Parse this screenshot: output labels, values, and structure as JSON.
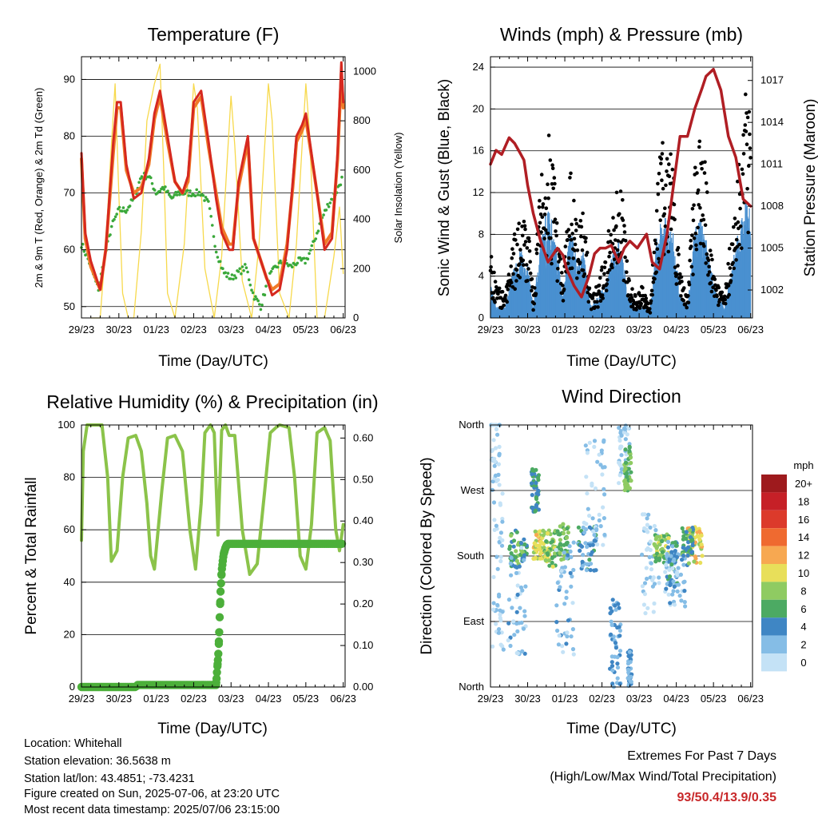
{
  "chart_data": [
    {
      "type": "line",
      "title": "Temperature (F)",
      "xlabel": "Time (Day/UTC)",
      "ylabel": "2m & 9m T (Red, Orange) & 2m Td (Green)",
      "ylabel_right": "Solar Insolation (Yellow)",
      "x_ticks": [
        "29/23",
        "30/23",
        "01/23",
        "02/23",
        "03/23",
        "04/23",
        "05/23",
        "06/23"
      ],
      "y_ticks": [
        50,
        60,
        70,
        80,
        90
      ],
      "y_right_ticks": [
        0,
        200,
        400,
        600,
        800,
        1000
      ],
      "xlim": [
        0,
        7.05
      ],
      "ylim": [
        48,
        94
      ],
      "ylim_right": [
        0,
        1060
      ],
      "grid": true,
      "series": [
        {
          "name": "2m T",
          "color": "#d6281f",
          "x": [
            0,
            0.1,
            0.25,
            0.5,
            0.65,
            0.85,
            0.95,
            1.05,
            1.2,
            1.4,
            1.6,
            1.8,
            1.95,
            2.1,
            2.3,
            2.5,
            2.7,
            2.85,
            3.0,
            3.2,
            3.4,
            3.6,
            3.75,
            3.95,
            4.05,
            4.2,
            4.45,
            4.6,
            4.8,
            4.95,
            5.1,
            5.3,
            5.5,
            5.65,
            5.75,
            5.9,
            6.0,
            6.3,
            6.5,
            6.7,
            6.85,
            6.95,
            7.0
          ],
          "y": [
            77,
            63,
            58,
            53,
            60,
            79,
            86,
            86,
            75,
            69,
            70,
            76,
            84,
            88,
            80,
            72,
            70,
            73,
            86,
            88,
            79,
            69,
            63,
            60,
            60,
            72,
            80,
            62,
            58,
            55,
            52,
            53,
            60,
            72,
            80,
            82,
            84,
            70,
            60,
            62,
            77,
            93,
            86
          ]
        },
        {
          "name": "9m T",
          "color": "#f07a28",
          "x": [
            0,
            0.1,
            0.25,
            0.5,
            0.65,
            0.85,
            0.95,
            1.05,
            1.2,
            1.4,
            1.6,
            1.8,
            1.95,
            2.1,
            2.3,
            2.5,
            2.7,
            2.85,
            3.0,
            3.2,
            3.4,
            3.6,
            3.75,
            3.95,
            4.05,
            4.2,
            4.45,
            4.6,
            4.8,
            4.95,
            5.1,
            5.3,
            5.5,
            5.65,
            5.75,
            5.9,
            6.0,
            6.3,
            6.5,
            6.7,
            6.85,
            6.95,
            7.0
          ],
          "y": [
            76,
            62,
            57,
            53,
            60,
            77,
            85,
            85,
            74,
            70,
            71,
            75,
            83,
            87,
            79,
            72,
            70,
            72,
            85,
            87,
            78,
            70,
            64,
            61,
            61,
            71,
            79,
            62,
            58,
            55,
            53,
            54,
            61,
            71,
            79,
            81,
            83,
            70,
            61,
            63,
            76,
            91,
            85
          ]
        },
        {
          "name": "2m Td",
          "color": "#3aa83a",
          "x": [
            0,
            0.2,
            0.45,
            0.6,
            0.8,
            1.0,
            1.2,
            1.4,
            1.6,
            1.8,
            2.0,
            2.2,
            2.4,
            2.6,
            2.8,
            3.0,
            3.2,
            3.4,
            3.6,
            3.8,
            4.0,
            4.2,
            4.4,
            4.6,
            4.8,
            5.0,
            5.2,
            5.4,
            5.6,
            5.8,
            6.0,
            6.2,
            6.4,
            6.6,
            6.8,
            7.0
          ],
          "y": [
            61,
            58,
            53,
            58,
            64,
            67,
            67,
            69,
            73,
            73,
            70,
            71,
            69,
            70,
            70,
            70,
            70,
            68,
            60,
            56,
            55,
            56,
            57,
            52,
            50,
            55,
            57,
            58,
            57,
            58,
            58,
            61,
            65,
            68,
            70,
            73
          ]
        },
        {
          "name": "Solar Insolation",
          "color": "#f7d94c",
          "axis": "right",
          "x": [
            0.25,
            0.5,
            0.65,
            0.8,
            0.9,
            1.0,
            1.1,
            1.25,
            1.4,
            1.6,
            1.75,
            1.95,
            2.1,
            2.2,
            2.3,
            2.5,
            2.75,
            2.9,
            3.0,
            3.1,
            3.3,
            3.55,
            3.75,
            3.9,
            4.0,
            4.1,
            4.3,
            4.55,
            4.75,
            4.9,
            5.0,
            5.1,
            5.3,
            5.55,
            5.75,
            5.9,
            6.0,
            6.1,
            6.3,
            6.5,
            6.75,
            6.9,
            7.0
          ],
          "y": [
            0,
            0,
            300,
            700,
            950,
            500,
            100,
            0,
            0,
            350,
            800,
            950,
            1030,
            600,
            100,
            0,
            300,
            700,
            950,
            850,
            200,
            0,
            250,
            650,
            900,
            700,
            150,
            0,
            300,
            700,
            950,
            800,
            100,
            0,
            300,
            700,
            950,
            750,
            0,
            0,
            250,
            450,
            180
          ]
        }
      ]
    },
    {
      "type": "scatter",
      "title": "Winds (mph) & Pressure (mb)",
      "xlabel": "Time (Day/UTC)",
      "ylabel": "Sonic Wind & Gust (Blue, Black)",
      "ylabel_right": "Station Pressure (Maroon)",
      "x_ticks": [
        "29/23",
        "30/23",
        "01/23",
        "02/23",
        "03/23",
        "04/23",
        "05/23",
        "06/23"
      ],
      "y_ticks": [
        0,
        4,
        8,
        12,
        16,
        20,
        24
      ],
      "y_right_ticks": [
        1002,
        1005,
        1008,
        1011,
        1014,
        1017
      ],
      "xlim": [
        0,
        7.05
      ],
      "ylim": [
        0,
        25
      ],
      "ylim_right": [
        1000.0,
        1018.7
      ],
      "grid": true,
      "wind_envelope": {
        "x": [
          0,
          0.15,
          0.4,
          0.6,
          0.8,
          1.0,
          1.15,
          1.35,
          1.55,
          1.75,
          1.95,
          2.15,
          2.35,
          2.5,
          2.7,
          2.9,
          3.1,
          3.3,
          3.5,
          3.7,
          3.9,
          4.1,
          4.3,
          4.5,
          4.7,
          4.9,
          5.1,
          5.3,
          5.5,
          5.7,
          5.9,
          6.1,
          6.3,
          6.5,
          6.7,
          6.9,
          7.0
        ],
        "gust": [
          6,
          3,
          2,
          7,
          9,
          9,
          2,
          12,
          18,
          11,
          3,
          13,
          8,
          10,
          2,
          3,
          6,
          11,
          13,
          4,
          2,
          3,
          1,
          13,
          17,
          14,
          4,
          2,
          14,
          17,
          8,
          3,
          2,
          9,
          14,
          21,
          19
        ],
        "wind": [
          3,
          1,
          1,
          4,
          6,
          5,
          1,
          7,
          10,
          7,
          2,
          8,
          5,
          6,
          1,
          2,
          3,
          6,
          7,
          2,
          1,
          1,
          1,
          8,
          9,
          8,
          2,
          1,
          8,
          9,
          5,
          2,
          1,
          5,
          8,
          11,
          9
        ]
      },
      "series": [
        {
          "name": "Station Pressure",
          "color": "#b01e24",
          "axis": "right",
          "x": [
            0,
            0.15,
            0.3,
            0.5,
            0.65,
            0.8,
            0.9,
            1.0,
            1.15,
            1.35,
            1.55,
            1.8,
            1.95,
            2.05,
            2.25,
            2.45,
            2.65,
            2.8,
            2.95,
            3.1,
            3.25,
            3.45,
            3.6,
            3.75,
            3.95,
            4.2,
            4.35,
            4.55,
            4.75,
            4.95,
            5.1,
            5.3,
            5.5,
            5.7,
            5.8,
            6.0,
            6.2,
            6.4,
            6.6,
            6.8,
            7.0
          ],
          "y": [
            1011.0,
            1012.0,
            1011.7,
            1012.9,
            1012.5,
            1011.8,
            1011.3,
            1009.5,
            1007.5,
            1005.5,
            1004.0,
            1005.0,
            1004.5,
            1003.5,
            1002.3,
            1001.5,
            1003.0,
            1004.6,
            1005.0,
            1005.0,
            1005.2,
            1004.0,
            1005.0,
            1005.5,
            1005.0,
            1006.0,
            1004.0,
            1003.5,
            1006.0,
            1010.0,
            1013.0,
            1013.0,
            1015.0,
            1016.5,
            1017.3,
            1017.8,
            1016.3,
            1013.0,
            1011.5,
            1008.5,
            1008.0
          ]
        }
      ]
    },
    {
      "type": "line",
      "title": "Relative Humidity (%) & Precipitation (in)",
      "xlabel": "Time (Day/UTC)",
      "ylabel": "Percent & Total Rainfall",
      "x_ticks": [
        "29/23",
        "30/23",
        "01/23",
        "02/23",
        "03/23",
        "04/23",
        "05/23",
        "06/23"
      ],
      "y_ticks": [
        0,
        20,
        40,
        60,
        80,
        100
      ],
      "y_right_ticks": [
        "0.00",
        "0.10",
        "0.20",
        "0.30",
        "0.40",
        "0.50",
        "0.60"
      ],
      "xlim": [
        0,
        7.05
      ],
      "ylim": [
        0,
        100
      ],
      "ylim_right": [
        0,
        0.6315
      ],
      "grid": true,
      "series": [
        {
          "name": "Relative Humidity",
          "color": "#8bc34a",
          "x": [
            0,
            0.05,
            0.15,
            0.3,
            0.55,
            0.7,
            0.8,
            0.95,
            1.1,
            1.25,
            1.45,
            1.6,
            1.75,
            1.85,
            1.95,
            2.15,
            2.3,
            2.5,
            2.7,
            2.9,
            3.05,
            3.2,
            3.3,
            3.45,
            3.55,
            3.65,
            3.75,
            3.85,
            3.95,
            4.1,
            4.3,
            4.5,
            4.7,
            4.9,
            5.05,
            5.2,
            5.3,
            5.55,
            5.7,
            5.85,
            6.0,
            6.15,
            6.3,
            6.5,
            6.65,
            6.8,
            6.9,
            7.0
          ],
          "y": [
            56,
            90,
            100,
            100,
            100,
            80,
            48,
            52,
            80,
            95,
            96,
            90,
            70,
            50,
            45,
            75,
            95,
            96,
            90,
            60,
            45,
            70,
            97,
            100,
            97,
            58,
            98,
            100,
            96,
            96,
            60,
            43,
            47,
            75,
            97,
            99,
            100,
            99,
            80,
            50,
            45,
            62,
            97,
            99,
            94,
            60,
            52,
            62
          ]
        },
        {
          "name": "Total Precipitation",
          "color": "#4caf3a",
          "axis": "right",
          "x": [
            0,
            0.5,
            1.0,
            1.45,
            1.5,
            2.0,
            2.5,
            3.6,
            3.62,
            3.66,
            3.68,
            3.7,
            3.72,
            3.75,
            3.8,
            3.85,
            3.9,
            4.0,
            4.5,
            5.0,
            5.5,
            6.0,
            6.5,
            7.0
          ],
          "y": [
            0,
            0,
            0,
            0,
            0.005,
            0.005,
            0.005,
            0.005,
            0.03,
            0.08,
            0.12,
            0.18,
            0.23,
            0.28,
            0.32,
            0.335,
            0.345,
            0.345,
            0.345,
            0.345,
            0.345,
            0.345,
            0.345,
            0.345
          ]
        }
      ]
    },
    {
      "type": "scatter",
      "title": "Wind Direction",
      "xlabel": "Time (Day/UTC)",
      "ylabel": "Direction (Colored By Speed)",
      "x_ticks": [
        "29/23",
        "30/23",
        "01/23",
        "02/23",
        "03/23",
        "04/23",
        "05/23",
        "06/23"
      ],
      "y_ticks": [
        "North",
        "East",
        "South",
        "West",
        "North"
      ],
      "y_tick_values": [
        0,
        90,
        180,
        270,
        360
      ],
      "xlim": [
        0,
        7.05
      ],
      "ylim": [
        0,
        360
      ],
      "grid": true,
      "legend": {
        "title": "mph",
        "placement": "right",
        "labels": [
          "20+",
          "18",
          "16",
          "14",
          "12",
          "10",
          "8",
          "6",
          "4",
          "2",
          "0"
        ],
        "colors": [
          "#9e1a1d",
          "#c62027",
          "#dc3a2b",
          "#ef6a30",
          "#f7a851",
          "#e8df5a",
          "#8fcb62",
          "#4caa63",
          "#3f86c4",
          "#85bde6",
          "#c4e2f6"
        ]
      },
      "clusters": [
        {
          "x": 0.1,
          "y": 330,
          "spread_x": 0.15,
          "spread_y": 60,
          "speed": 1
        },
        {
          "x": 0.2,
          "y": 160,
          "spread_x": 0.15,
          "spread_y": 110,
          "speed": 1
        },
        {
          "x": 0.75,
          "y": 190,
          "spread_x": 0.25,
          "spread_y": 25,
          "speed": 6
        },
        {
          "x": 0.7,
          "y": 120,
          "spread_x": 0.25,
          "spread_y": 80,
          "speed": 2
        },
        {
          "x": 1.3,
          "y": 195,
          "spread_x": 0.15,
          "spread_y": 20,
          "speed": 10
        },
        {
          "x": 1.2,
          "y": 270,
          "spread_x": 0.1,
          "spread_y": 30,
          "speed": 5
        },
        {
          "x": 1.6,
          "y": 190,
          "spread_x": 0.15,
          "spread_y": 25,
          "speed": 8
        },
        {
          "x": 1.95,
          "y": 200,
          "spread_x": 0.15,
          "spread_y": 25,
          "speed": 7
        },
        {
          "x": 2.0,
          "y": 120,
          "spread_x": 0.25,
          "spread_y": 80,
          "speed": 2
        },
        {
          "x": 2.6,
          "y": 190,
          "spread_x": 0.25,
          "spread_y": 30,
          "speed": 4
        },
        {
          "x": 2.8,
          "y": 270,
          "spread_x": 0.3,
          "spread_y": 80,
          "speed": 1
        },
        {
          "x": 3.35,
          "y": 60,
          "spread_x": 0.15,
          "spread_y": 60,
          "speed": 3
        },
        {
          "x": 3.6,
          "y": 320,
          "spread_x": 0.15,
          "spread_y": 40,
          "speed": 1
        },
        {
          "x": 3.7,
          "y": 300,
          "spread_x": 0.1,
          "spread_y": 30,
          "speed": 7
        },
        {
          "x": 3.75,
          "y": 25,
          "spread_x": 0.05,
          "spread_y": 25,
          "speed": 3
        },
        {
          "x": 4.3,
          "y": 170,
          "spread_x": 0.25,
          "spread_y": 70,
          "speed": 1
        },
        {
          "x": 4.6,
          "y": 190,
          "spread_x": 0.2,
          "spread_y": 20,
          "speed": 8
        },
        {
          "x": 4.9,
          "y": 170,
          "spread_x": 0.15,
          "spread_y": 30,
          "speed": 4
        },
        {
          "x": 5.0,
          "y": 150,
          "spread_x": 0.3,
          "spread_y": 40,
          "speed": 2
        },
        {
          "x": 5.5,
          "y": 195,
          "spread_x": 0.2,
          "spread_y": 25,
          "speed": 10
        },
        {
          "x": 5.3,
          "y": 200,
          "spread_x": 0.15,
          "spread_y": 20,
          "speed": 6
        }
      ]
    }
  ],
  "info": {
    "location": "Location: Whitehall",
    "elevation": "Station elevation: 36.5638 m",
    "latlon": "Station lat/lon: 43.4851; -73.4231",
    "created": "Figure created on Sun, 2025-07-06, at 23:20 UTC",
    "recent": "Most recent data timestamp: 2025/07/06 23:15:00"
  },
  "extremes": {
    "title": "Extremes For Past 7 Days",
    "subtitle": "(High/Low/Max Wind/Total Precipitation)",
    "values": "93/50.4/13.9/0.35"
  }
}
